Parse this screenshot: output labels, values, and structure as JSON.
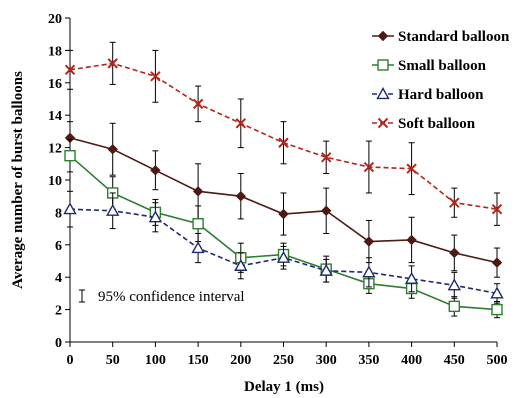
{
  "chart_data": {
    "type": "line",
    "title": "",
    "xlabel": "Delay 1 (ms)",
    "ylabel": "Average number of burst balloons",
    "xlim": [
      0,
      500
    ],
    "ylim": [
      0,
      20
    ],
    "x_ticks": [
      0,
      50,
      100,
      150,
      200,
      250,
      300,
      350,
      400,
      450,
      500
    ],
    "y_ticks": [
      0,
      2,
      4,
      6,
      8,
      10,
      12,
      14,
      16,
      18,
      20
    ],
    "x": [
      0,
      50,
      100,
      150,
      200,
      250,
      300,
      350,
      400,
      450,
      500
    ],
    "grid": false,
    "legend_position": "top-right",
    "annotation": "95% confidence interval",
    "series": [
      {
        "name": "Standard balloon",
        "color": "#4d1a14",
        "marker": "filled-diamond",
        "line_style": "solid",
        "values": [
          12.6,
          11.9,
          10.6,
          9.3,
          9.0,
          7.9,
          8.1,
          6.2,
          6.3,
          5.5,
          4.9
        ],
        "ci": [
          1.0,
          1.6,
          1.2,
          1.7,
          1.4,
          1.3,
          1.4,
          1.3,
          1.4,
          1.1,
          0.9
        ]
      },
      {
        "name": "Small balloon",
        "color": "#2e7d32",
        "marker": "open-square",
        "line_style": "solid",
        "values": [
          11.5,
          9.2,
          8.0,
          7.3,
          5.2,
          5.4,
          4.5,
          3.6,
          3.3,
          2.2,
          2.0
        ],
        "ci": [
          1.0,
          1.0,
          0.8,
          1.1,
          0.9,
          0.7,
          0.8,
          0.6,
          0.6,
          0.6,
          0.5
        ]
      },
      {
        "name": "Hard balloon",
        "color": "#1f2a6b",
        "marker": "open-triangle",
        "line_style": "dashed",
        "values": [
          8.2,
          8.1,
          7.7,
          5.8,
          4.7,
          5.2,
          4.4,
          4.3,
          3.9,
          3.5,
          3.0
        ],
        "ci": [
          1.1,
          1.1,
          0.9,
          0.9,
          0.8,
          0.7,
          0.7,
          0.9,
          0.8,
          0.8,
          0.6
        ]
      },
      {
        "name": "Soft balloon",
        "color": "#b3261e",
        "marker": "x",
        "line_style": "dashed",
        "values": [
          16.8,
          17.2,
          16.4,
          14.7,
          13.5,
          12.3,
          11.4,
          10.8,
          10.7,
          8.6,
          8.2
        ],
        "ci": [
          1.2,
          1.3,
          1.6,
          1.1,
          1.5,
          1.3,
          1.0,
          1.6,
          1.6,
          0.9,
          1.0
        ]
      }
    ]
  }
}
